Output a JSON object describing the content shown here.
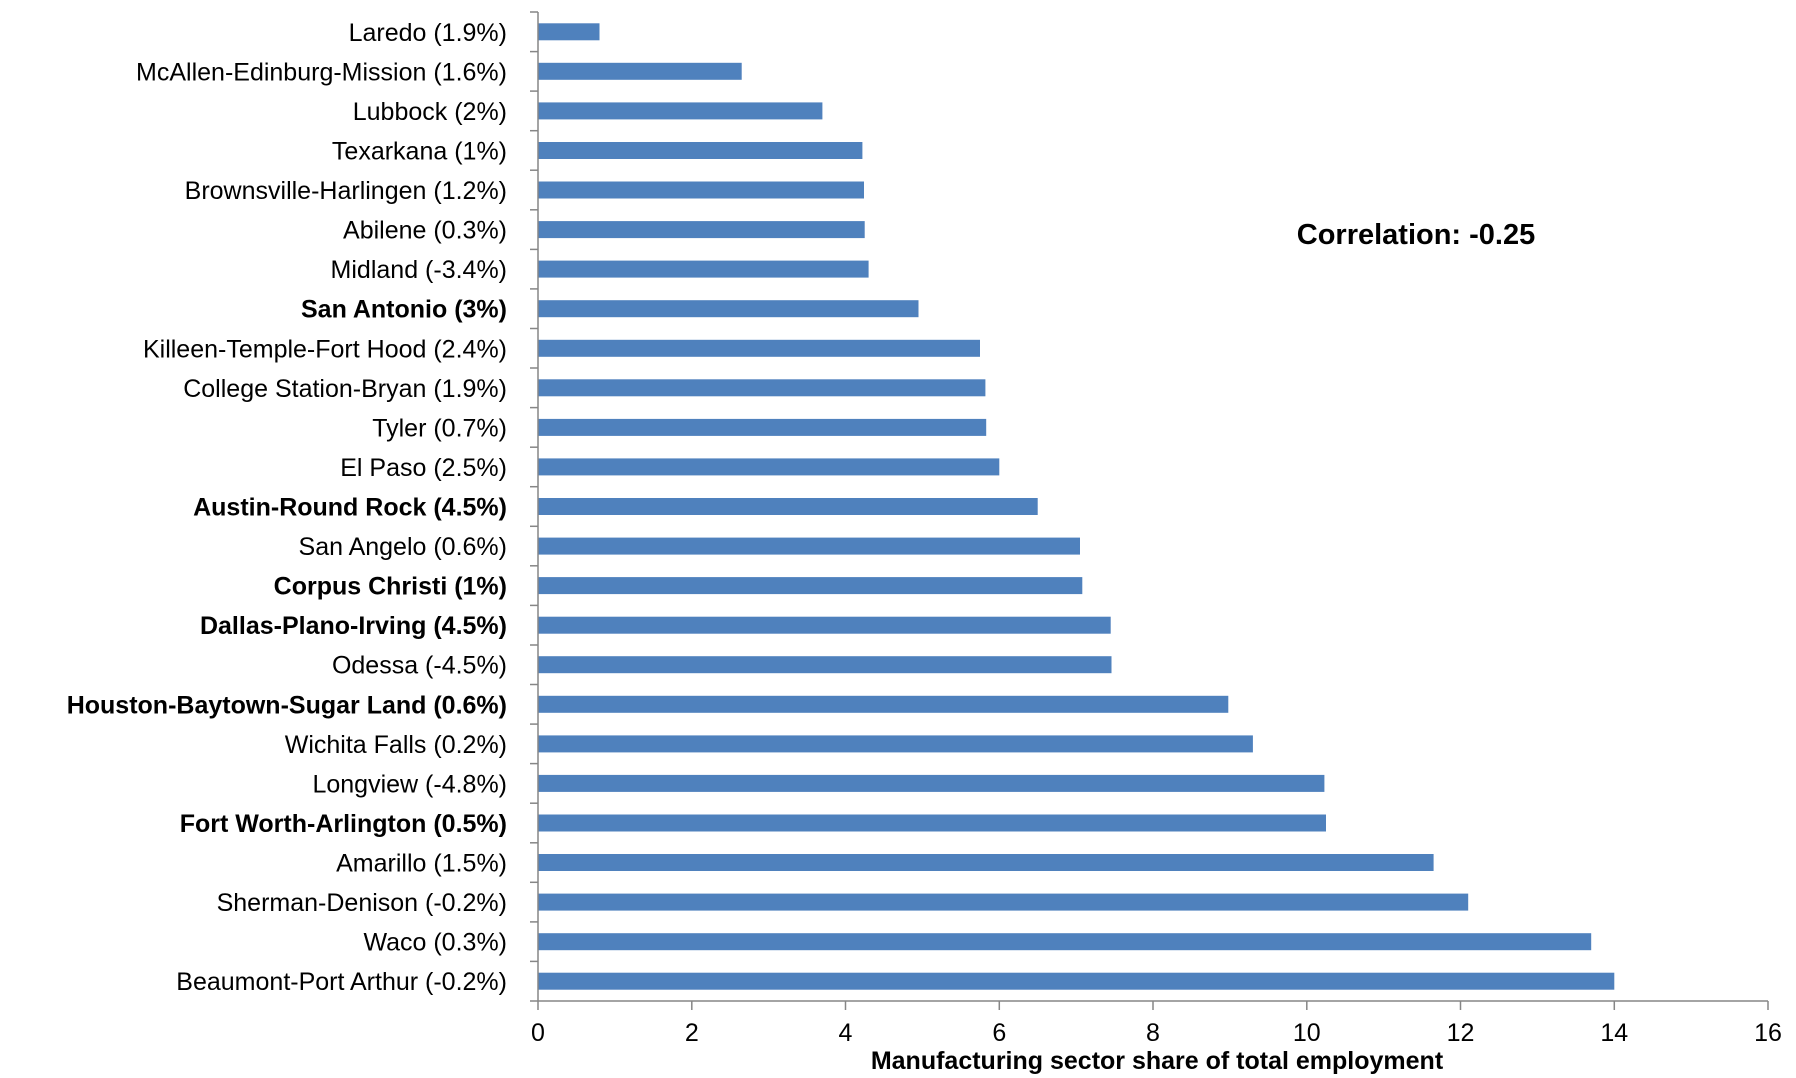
{
  "chart_data": {
    "type": "bar",
    "orientation": "horizontal",
    "categories": [
      {
        "label": "Laredo (1.9%)",
        "value": 0.8,
        "bold": false
      },
      {
        "label": "McAllen-Edinburg-Mission (1.6%)",
        "value": 2.65,
        "bold": false
      },
      {
        "label": "Lubbock (2%)",
        "value": 3.7,
        "bold": false
      },
      {
        "label": "Texarkana (1%)",
        "value": 4.22,
        "bold": false
      },
      {
        "label": "Brownsville-Harlingen (1.2%)",
        "value": 4.24,
        "bold": false
      },
      {
        "label": "Abilene (0.3%)",
        "value": 4.25,
        "bold": false
      },
      {
        "label": "Midland (-3.4%)",
        "value": 4.3,
        "bold": false
      },
      {
        "label": "San Antonio (3%)",
        "value": 4.95,
        "bold": true
      },
      {
        "label": "Killeen-Temple-Fort Hood (2.4%)",
        "value": 5.75,
        "bold": false
      },
      {
        "label": "College Station-Bryan (1.9%)",
        "value": 5.82,
        "bold": false
      },
      {
        "label": "Tyler  (0.7%)",
        "value": 5.83,
        "bold": false
      },
      {
        "label": "El Paso (2.5%)",
        "value": 6.0,
        "bold": false
      },
      {
        "label": "Austin-Round Rock (4.5%)",
        "value": 6.5,
        "bold": true
      },
      {
        "label": "San Angelo (0.6%)",
        "value": 7.05,
        "bold": false
      },
      {
        "label": "Corpus Christi (1%)",
        "value": 7.08,
        "bold": true
      },
      {
        "label": "Dallas-Plano-Irving (4.5%)",
        "value": 7.45,
        "bold": true
      },
      {
        "label": "Odessa (-4.5%)",
        "value": 7.46,
        "bold": false
      },
      {
        "label": "Houston-Baytown-Sugar Land (0.6%)",
        "value": 8.98,
        "bold": true
      },
      {
        "label": "Wichita Falls  (0.2%)",
        "value": 9.3,
        "bold": false
      },
      {
        "label": "Longview (-4.8%)",
        "value": 10.23,
        "bold": false
      },
      {
        "label": "Fort Worth-Arlington (0.5%)",
        "value": 10.25,
        "bold": true
      },
      {
        "label": "Amarillo (1.5%)",
        "value": 11.65,
        "bold": false
      },
      {
        "label": "Sherman-Denison (-0.2%)",
        "value": 12.1,
        "bold": false
      },
      {
        "label": "Waco  (0.3%)",
        "value": 13.7,
        "bold": false
      },
      {
        "label": "Beaumont-Port Arthur (-0.2%)",
        "value": 14.0,
        "bold": false
      }
    ],
    "xlim": [
      0,
      16
    ],
    "xticks": [
      0,
      2,
      4,
      6,
      8,
      10,
      12,
      14,
      16
    ],
    "xlabel": "Manufacturing sector share of total employment",
    "annotation": "Correlation: -0.25",
    "bar_color": "#4F81BD",
    "axis_color": "#868686",
    "grid": false,
    "legend": "none"
  }
}
